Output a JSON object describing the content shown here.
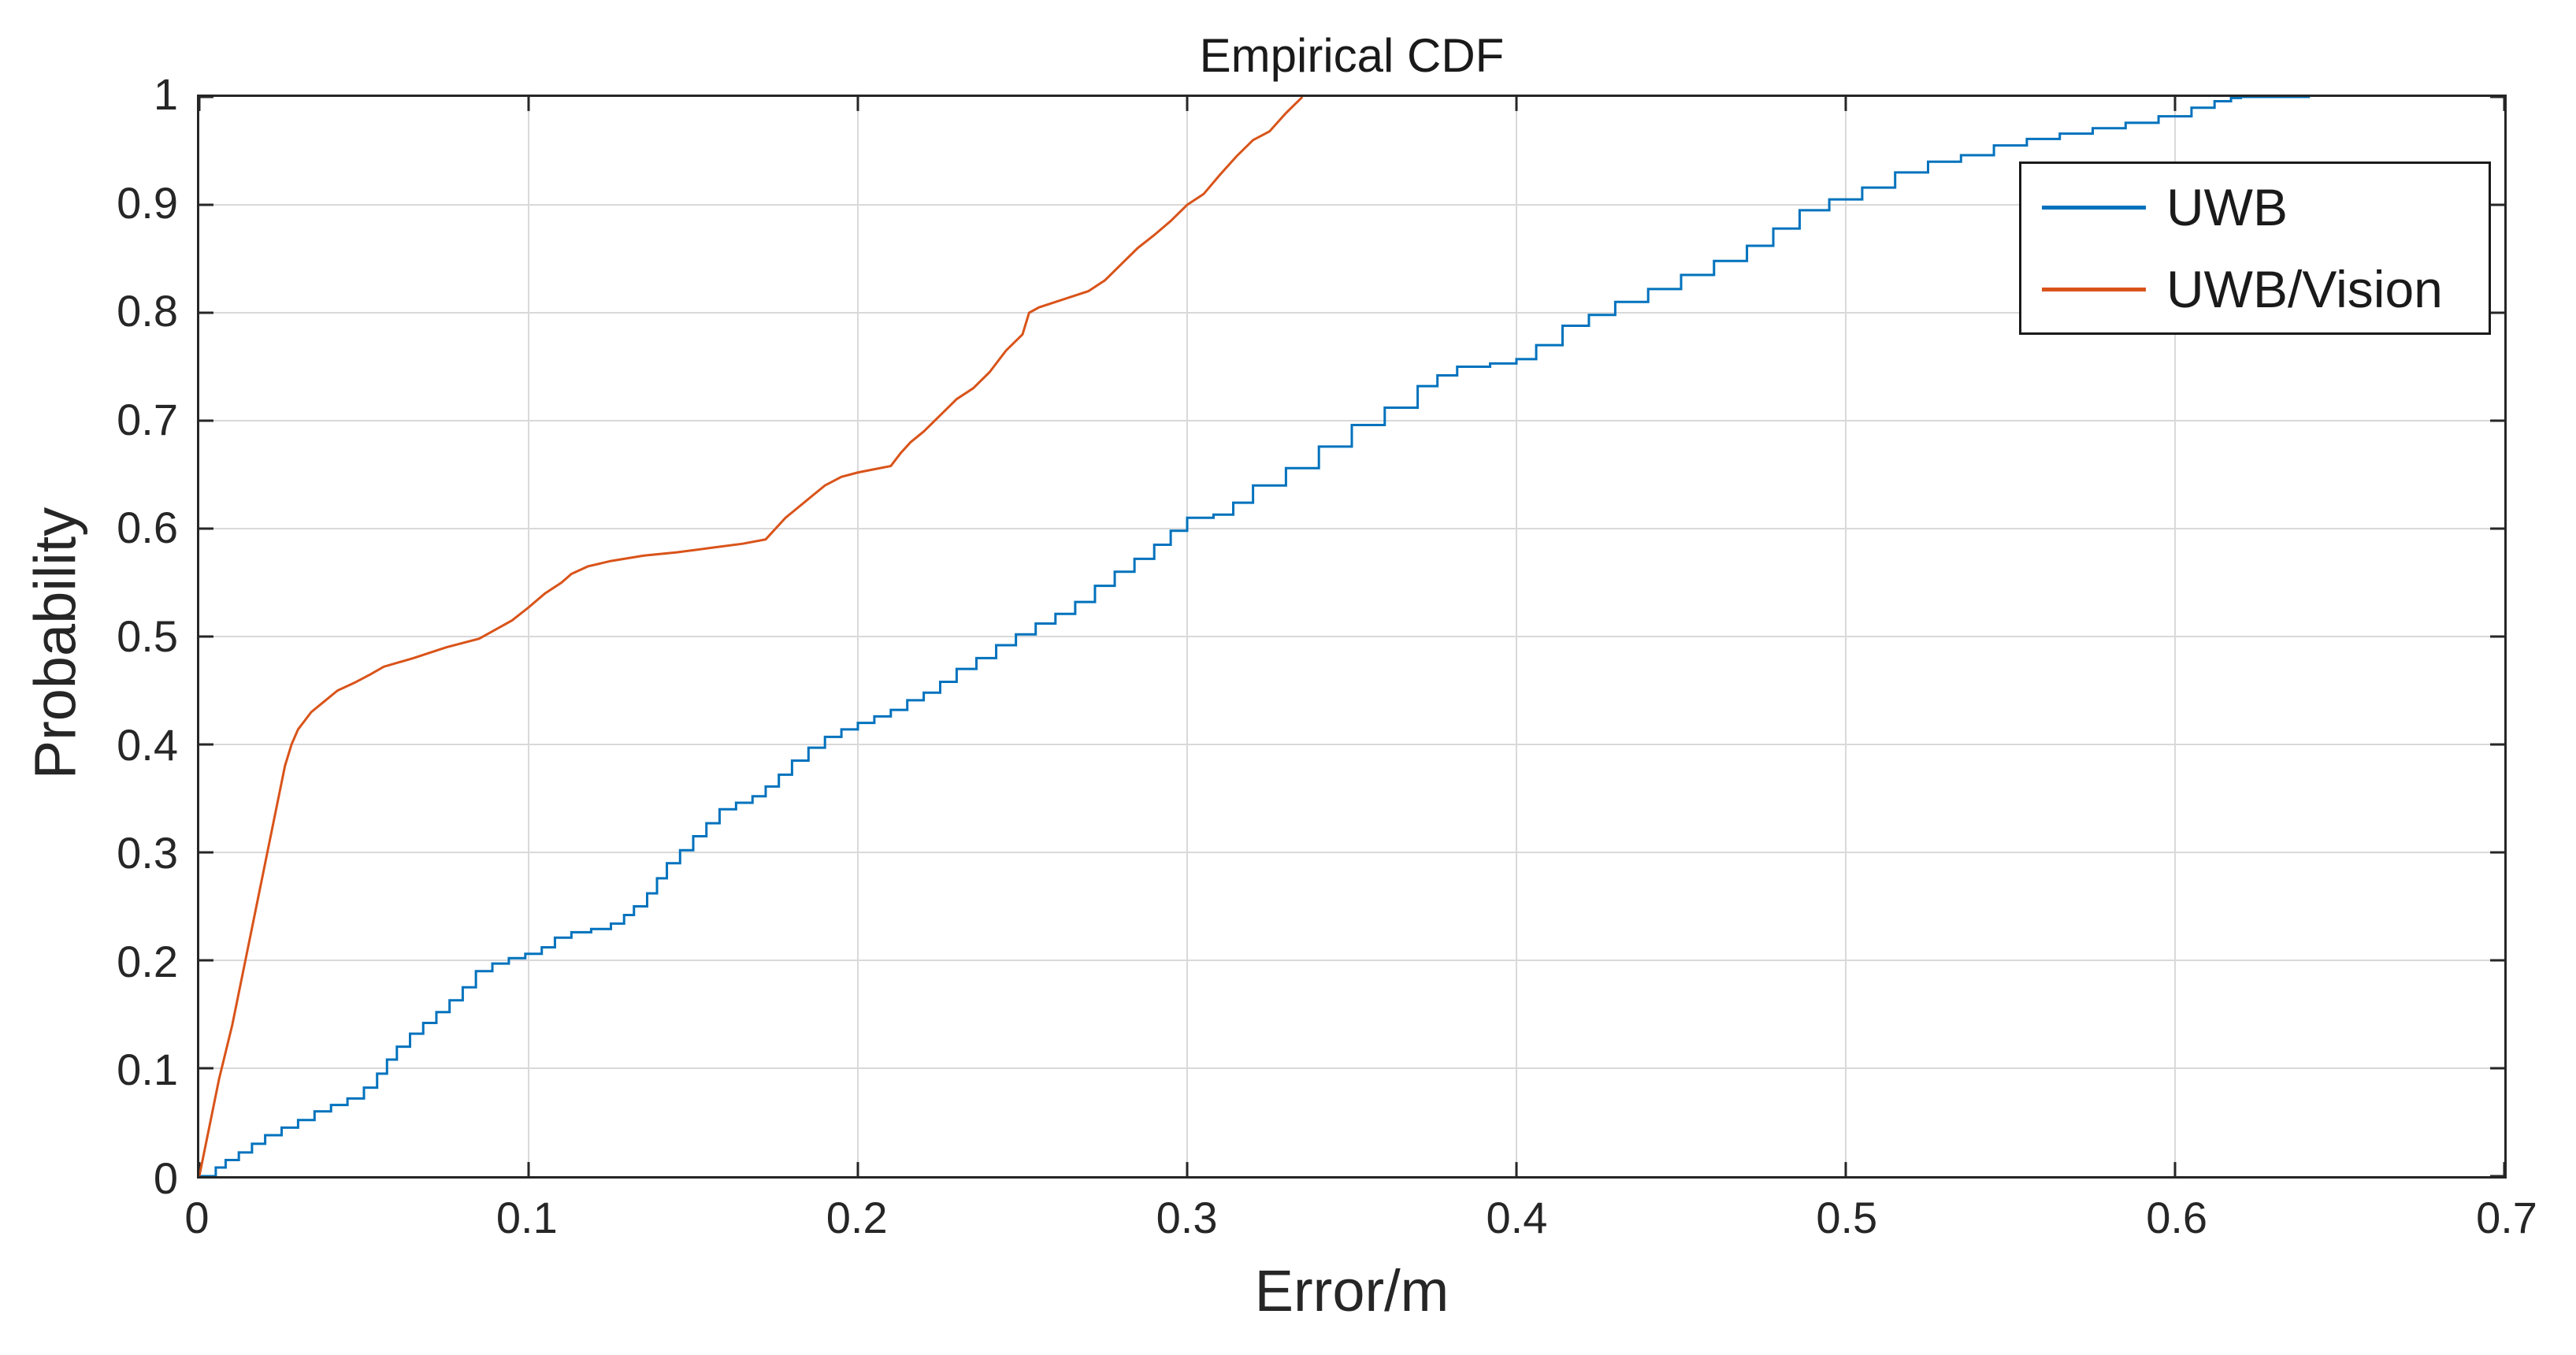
{
  "title": "Empirical CDF",
  "axes": {
    "xlabel": "Error/m",
    "ylabel": "Probability",
    "xlim": [
      0,
      0.7
    ],
    "ylim": [
      0,
      1
    ],
    "x_ticks": [
      "0",
      "0.1",
      "0.2",
      "0.3",
      "0.4",
      "0.5",
      "0.6",
      "0.7"
    ],
    "y_ticks": [
      "0",
      "0.1",
      "0.2",
      "0.3",
      "0.4",
      "0.5",
      "0.6",
      "0.7",
      "0.8",
      "0.9",
      "1"
    ],
    "grid": true
  },
  "colors": {
    "axis": "#262626",
    "grid": "#d9d9d9",
    "background": "#ffffff",
    "series_blue": "#0072BD",
    "series_orange": "#D95319"
  },
  "legend": {
    "position": "northeast",
    "items": [
      {
        "label": "UWB",
        "color": "#0072BD"
      },
      {
        "label": "UWB/Vision",
        "color": "#D95319"
      }
    ]
  },
  "chart_data": {
    "type": "line",
    "title": "Empirical CDF",
    "xlabel": "Error/m",
    "ylabel": "Probability",
    "xlim": [
      0,
      0.7
    ],
    "ylim": [
      0,
      1
    ],
    "grid": true,
    "legend_position": "northeast",
    "series": [
      {
        "name": "UWB",
        "color": "#0072BD",
        "interpolation": "step-after",
        "points": [
          [
            0,
            0
          ],
          [
            0.005,
            0.008
          ],
          [
            0.008,
            0.015
          ],
          [
            0.012,
            0.022
          ],
          [
            0.016,
            0.03
          ],
          [
            0.02,
            0.038
          ],
          [
            0.025,
            0.045
          ],
          [
            0.03,
            0.052
          ],
          [
            0.035,
            0.06
          ],
          [
            0.04,
            0.066
          ],
          [
            0.045,
            0.072
          ],
          [
            0.05,
            0.082
          ],
          [
            0.054,
            0.095
          ],
          [
            0.057,
            0.108
          ],
          [
            0.06,
            0.12
          ],
          [
            0.064,
            0.132
          ],
          [
            0.068,
            0.142
          ],
          [
            0.072,
            0.152
          ],
          [
            0.076,
            0.163
          ],
          [
            0.08,
            0.175
          ],
          [
            0.084,
            0.19
          ],
          [
            0.089,
            0.197
          ],
          [
            0.094,
            0.202
          ],
          [
            0.099,
            0.206
          ],
          [
            0.104,
            0.212
          ],
          [
            0.108,
            0.221
          ],
          [
            0.113,
            0.226
          ],
          [
            0.119,
            0.229
          ],
          [
            0.125,
            0.234
          ],
          [
            0.129,
            0.242
          ],
          [
            0.132,
            0.25
          ],
          [
            0.136,
            0.262
          ],
          [
            0.139,
            0.276
          ],
          [
            0.142,
            0.29
          ],
          [
            0.146,
            0.302
          ],
          [
            0.15,
            0.315
          ],
          [
            0.154,
            0.327
          ],
          [
            0.158,
            0.34
          ],
          [
            0.163,
            0.346
          ],
          [
            0.168,
            0.352
          ],
          [
            0.172,
            0.361
          ],
          [
            0.176,
            0.372
          ],
          [
            0.18,
            0.385
          ],
          [
            0.185,
            0.397
          ],
          [
            0.19,
            0.407
          ],
          [
            0.195,
            0.414
          ],
          [
            0.2,
            0.42
          ],
          [
            0.205,
            0.426
          ],
          [
            0.21,
            0.432
          ],
          [
            0.215,
            0.441
          ],
          [
            0.22,
            0.448
          ],
          [
            0.225,
            0.458
          ],
          [
            0.23,
            0.47
          ],
          [
            0.236,
            0.48
          ],
          [
            0.242,
            0.492
          ],
          [
            0.248,
            0.502
          ],
          [
            0.254,
            0.512
          ],
          [
            0.26,
            0.521
          ],
          [
            0.266,
            0.532
          ],
          [
            0.272,
            0.547
          ],
          [
            0.278,
            0.56
          ],
          [
            0.284,
            0.572
          ],
          [
            0.29,
            0.585
          ],
          [
            0.295,
            0.598
          ],
          [
            0.3,
            0.61
          ],
          [
            0.308,
            0.613
          ],
          [
            0.314,
            0.624
          ],
          [
            0.32,
            0.64
          ],
          [
            0.33,
            0.656
          ],
          [
            0.34,
            0.676
          ],
          [
            0.35,
            0.696
          ],
          [
            0.36,
            0.712
          ],
          [
            0.37,
            0.732
          ],
          [
            0.376,
            0.742
          ],
          [
            0.382,
            0.75
          ],
          [
            0.392,
            0.753
          ],
          [
            0.4,
            0.757
          ],
          [
            0.406,
            0.77
          ],
          [
            0.414,
            0.788
          ],
          [
            0.422,
            0.798
          ],
          [
            0.43,
            0.81
          ],
          [
            0.44,
            0.822
          ],
          [
            0.45,
            0.835
          ],
          [
            0.46,
            0.848
          ],
          [
            0.47,
            0.862
          ],
          [
            0.478,
            0.878
          ],
          [
            0.486,
            0.895
          ],
          [
            0.495,
            0.905
          ],
          [
            0.505,
            0.916
          ],
          [
            0.515,
            0.93
          ],
          [
            0.525,
            0.94
          ],
          [
            0.535,
            0.946
          ],
          [
            0.545,
            0.955
          ],
          [
            0.555,
            0.961
          ],
          [
            0.565,
            0.966
          ],
          [
            0.575,
            0.971
          ],
          [
            0.585,
            0.976
          ],
          [
            0.595,
            0.982
          ],
          [
            0.605,
            0.99
          ],
          [
            0.612,
            0.996
          ],
          [
            0.617,
            0.999
          ],
          [
            0.62,
            1
          ],
          [
            0.641,
            1
          ]
        ]
      },
      {
        "name": "UWB/Vision",
        "color": "#D95319",
        "interpolation": "linear",
        "points": [
          [
            0,
            0
          ],
          [
            0.002,
            0.03
          ],
          [
            0.004,
            0.06
          ],
          [
            0.006,
            0.09
          ],
          [
            0.008,
            0.115
          ],
          [
            0.01,
            0.14
          ],
          [
            0.012,
            0.17
          ],
          [
            0.014,
            0.2
          ],
          [
            0.016,
            0.23
          ],
          [
            0.018,
            0.26
          ],
          [
            0.02,
            0.29
          ],
          [
            0.022,
            0.32
          ],
          [
            0.024,
            0.35
          ],
          [
            0.026,
            0.38
          ],
          [
            0.028,
            0.4
          ],
          [
            0.03,
            0.414
          ],
          [
            0.034,
            0.43
          ],
          [
            0.038,
            0.44
          ],
          [
            0.042,
            0.45
          ],
          [
            0.047,
            0.457
          ],
          [
            0.052,
            0.465
          ],
          [
            0.056,
            0.472
          ],
          [
            0.065,
            0.48
          ],
          [
            0.075,
            0.49
          ],
          [
            0.085,
            0.498
          ],
          [
            0.095,
            0.515
          ],
          [
            0.1,
            0.527
          ],
          [
            0.105,
            0.54
          ],
          [
            0.11,
            0.55
          ],
          [
            0.113,
            0.558
          ],
          [
            0.118,
            0.565
          ],
          [
            0.125,
            0.57
          ],
          [
            0.135,
            0.575
          ],
          [
            0.145,
            0.578
          ],
          [
            0.155,
            0.582
          ],
          [
            0.165,
            0.586
          ],
          [
            0.172,
            0.59
          ],
          [
            0.175,
            0.6
          ],
          [
            0.178,
            0.61
          ],
          [
            0.182,
            0.62
          ],
          [
            0.186,
            0.63
          ],
          [
            0.19,
            0.64
          ],
          [
            0.195,
            0.648
          ],
          [
            0.2,
            0.652
          ],
          [
            0.205,
            0.655
          ],
          [
            0.21,
            0.658
          ],
          [
            0.213,
            0.67
          ],
          [
            0.216,
            0.68
          ],
          [
            0.22,
            0.69
          ],
          [
            0.225,
            0.705
          ],
          [
            0.23,
            0.72
          ],
          [
            0.235,
            0.73
          ],
          [
            0.24,
            0.745
          ],
          [
            0.245,
            0.765
          ],
          [
            0.25,
            0.78
          ],
          [
            0.252,
            0.8
          ],
          [
            0.255,
            0.805
          ],
          [
            0.26,
            0.81
          ],
          [
            0.265,
            0.815
          ],
          [
            0.27,
            0.82
          ],
          [
            0.275,
            0.83
          ],
          [
            0.28,
            0.845
          ],
          [
            0.285,
            0.86
          ],
          [
            0.29,
            0.872
          ],
          [
            0.295,
            0.885
          ],
          [
            0.3,
            0.9
          ],
          [
            0.305,
            0.91
          ],
          [
            0.31,
            0.928
          ],
          [
            0.315,
            0.945
          ],
          [
            0.32,
            0.96
          ],
          [
            0.325,
            0.968
          ],
          [
            0.33,
            0.985
          ],
          [
            0.335,
            1
          ]
        ]
      }
    ]
  }
}
